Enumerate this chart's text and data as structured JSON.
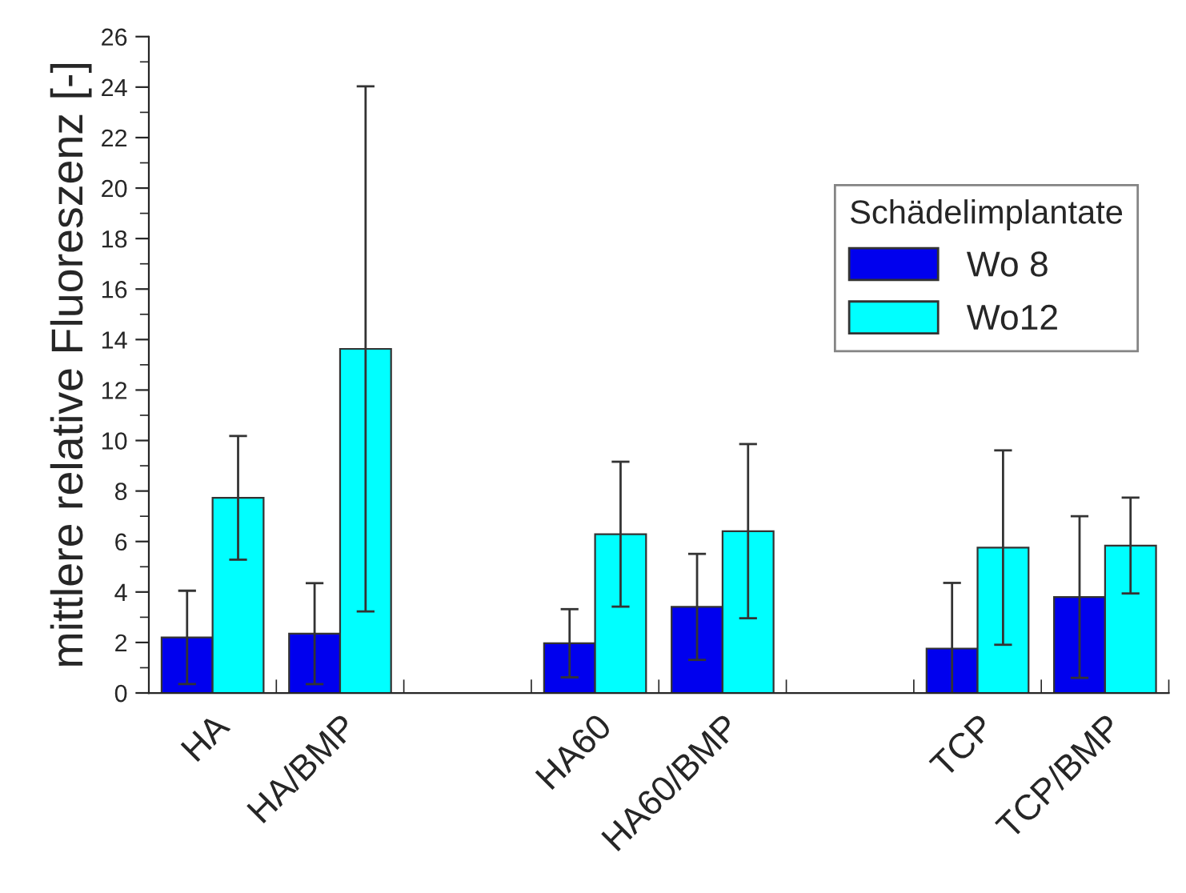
{
  "chart_data": {
    "type": "bar",
    "ylabel": "mittlere relative Fluoreszenz [-]",
    "legend_title": "Schädelimplantate",
    "categories": [
      "HA",
      "HA/BMP",
      null,
      "HA60",
      "HA60/BMP",
      null,
      "TCP",
      "TCP/BMP"
    ],
    "series": [
      {
        "name": "Wo 8",
        "color": "#0000ee",
        "values": [
          2.2,
          2.35,
          null,
          1.97,
          3.41,
          null,
          1.76,
          3.8
        ],
        "errors": [
          1.85,
          2.0,
          null,
          1.35,
          2.1,
          null,
          2.6,
          3.2
        ]
      },
      {
        "name": "Wo12",
        "color": "#00ffff",
        "values": [
          7.73,
          13.63,
          null,
          6.29,
          6.41,
          null,
          5.76,
          5.84
        ],
        "errors": [
          2.45,
          10.4,
          null,
          2.87,
          3.45,
          null,
          3.85,
          1.9
        ]
      }
    ],
    "ylim": [
      0,
      26
    ],
    "yticks": [
      0,
      2,
      4,
      6,
      8,
      10,
      12,
      14,
      16,
      18,
      20,
      22,
      24,
      26
    ],
    "grid": false,
    "legend": "top right"
  }
}
